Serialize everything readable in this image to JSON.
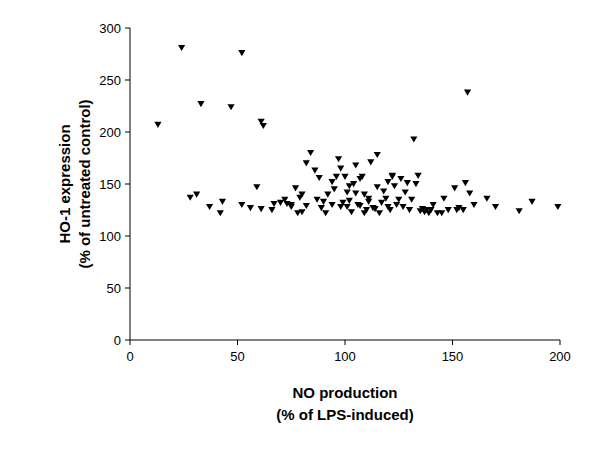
{
  "chart_data": {
    "type": "scatter",
    "xlabel": "NO production\n(% of LPS-induced)",
    "ylabel": "HO-1 expression\n(% of untreated control)",
    "marker": "triangle-down",
    "color": "#000000",
    "grid": false,
    "xlim": [
      0,
      200
    ],
    "xticks": [
      0,
      50,
      100,
      150,
      200
    ],
    "ylim": [
      0,
      300
    ],
    "yticks": [
      0,
      50,
      100,
      150,
      200,
      250,
      300
    ],
    "x": [
      13,
      24,
      33,
      47,
      52,
      61,
      62,
      157,
      28,
      31,
      37,
      42,
      43,
      52,
      56,
      59,
      61,
      66,
      67,
      70,
      72,
      73,
      75,
      75,
      77,
      78,
      79,
      80,
      80,
      82,
      82,
      84,
      86,
      87,
      88,
      89,
      90,
      91,
      92,
      94,
      94,
      95,
      96,
      97,
      98,
      98,
      99,
      100,
      101,
      101,
      102,
      102,
      103,
      104,
      105,
      105,
      106,
      107,
      107,
      108,
      109,
      109,
      110,
      111,
      111,
      112,
      113,
      114,
      115,
      115,
      116,
      117,
      118,
      119,
      120,
      120,
      121,
      122,
      122,
      123,
      124,
      125,
      126,
      127,
      128,
      129,
      130,
      131,
      132,
      133,
      134,
      135,
      136,
      137,
      138,
      139,
      140,
      141,
      143,
      145,
      146,
      148,
      151,
      152,
      153,
      155,
      156,
      158,
      160,
      166,
      170,
      181,
      187,
      199
    ],
    "values": [
      207,
      281,
      227,
      224,
      276,
      210,
      206,
      238,
      137,
      140,
      128,
      122,
      133,
      130,
      127,
      147,
      126,
      125,
      131,
      132,
      135,
      131,
      130,
      128,
      146,
      122,
      137,
      140,
      123,
      129,
      170,
      180,
      163,
      135,
      156,
      127,
      133,
      122,
      140,
      130,
      152,
      145,
      157,
      174,
      165,
      128,
      132,
      157,
      142,
      128,
      148,
      134,
      123,
      150,
      141,
      168,
      130,
      129,
      155,
      157,
      140,
      122,
      125,
      133,
      136,
      171,
      127,
      126,
      178,
      147,
      122,
      132,
      143,
      136,
      152,
      128,
      125,
      157,
      158,
      148,
      130,
      135,
      155,
      128,
      142,
      151,
      125,
      135,
      193,
      150,
      158,
      124,
      126,
      123,
      125,
      122,
      125,
      130,
      122,
      122,
      136,
      125,
      146,
      125,
      127,
      125,
      151,
      141,
      130,
      136,
      128,
      124,
      133,
      128
    ]
  }
}
